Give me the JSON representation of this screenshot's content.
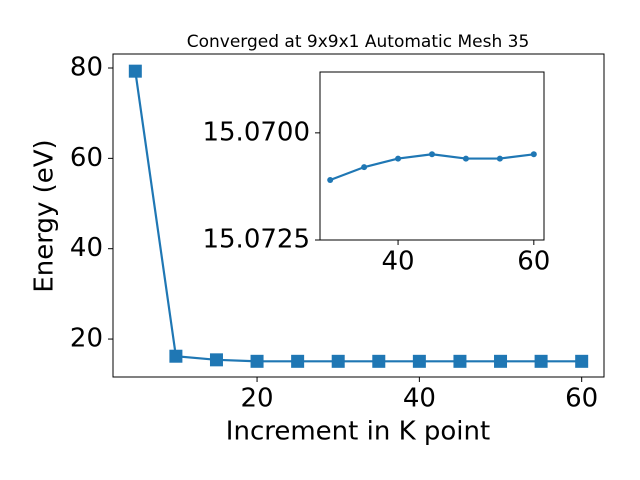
{
  "chart_data": [
    {
      "type": "line",
      "title": "Converged at 9x9x1 Automatic Mesh 35",
      "x_label": "Increment in K point",
      "y_label": "Energy (eV)",
      "x": [
        5,
        10,
        15,
        20,
        25,
        30,
        35,
        40,
        45,
        50,
        55,
        60
      ],
      "values": [
        79.3,
        16.2,
        15.4,
        15.072,
        15.0715,
        15.0711,
        15.0708,
        15.0706,
        15.0705,
        15.0706,
        15.0706,
        15.0705
      ],
      "color": "#1f77b4",
      "marker": "square",
      "xlim": [
        2.25,
        62.75
      ],
      "ylim": [
        11.6,
        83.1
      ],
      "xticks": [
        20,
        40,
        60
      ],
      "yticks": [
        20,
        40,
        60,
        80
      ]
    },
    {
      "type": "line",
      "x": [
        30,
        35,
        40,
        45,
        50,
        55,
        60
      ],
      "values": [
        15.0711,
        15.0708,
        15.0706,
        15.0705,
        15.0706,
        15.0706,
        15.0705
      ],
      "color": "#1f77b4",
      "marker": "circle",
      "xlim": [
        28.5,
        61.5
      ],
      "ylim": [
        15.0725,
        15.06858
      ],
      "xticks": [
        40,
        60
      ],
      "yticks": [
        {
          "value": 15.07,
          "label": "15.0700"
        },
        {
          "value": 15.0725,
          "label": "15.0725"
        }
      ]
    }
  ]
}
